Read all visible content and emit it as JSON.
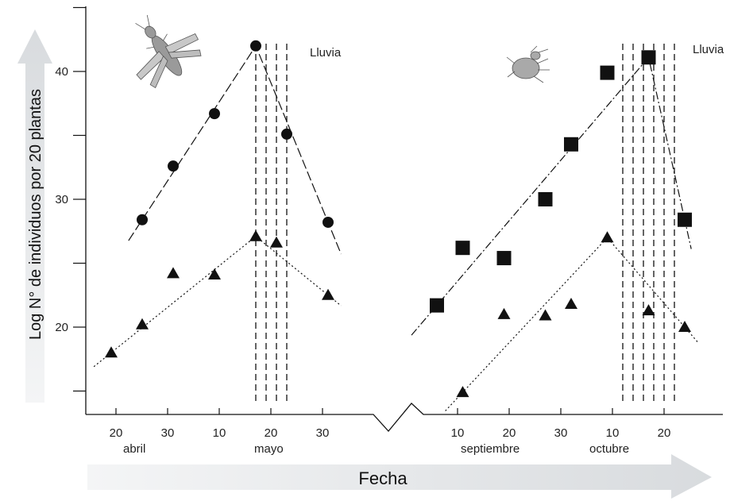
{
  "chart_data": {
    "type": "scatter",
    "xlabel": "Fecha",
    "ylabel": "Log N° de individuos por 20 plantas",
    "ylim": [
      13,
      45
    ],
    "y_ticks": [
      20,
      30,
      40
    ],
    "grid": false,
    "axis_break": true,
    "x_tick_labels_left": [
      "20",
      "30",
      "10",
      "20",
      "30"
    ],
    "x_tick_labels_right": [
      "10",
      "20",
      "30",
      "10",
      "20"
    ],
    "months": [
      "abril",
      "mayo",
      "septiembre",
      "octubre"
    ],
    "rain_label": "Lluvia",
    "panels": [
      {
        "segment": "abril-mayo",
        "series": [
          {
            "marker": "circle",
            "points": [
              [
                25,
                28.4
              ],
              [
                31,
                32.6
              ],
              [
                39,
                36.7
              ],
              [
                47,
                42
              ],
              [
                53,
                35.1
              ],
              [
                61,
                28.2
              ]
            ]
          },
          {
            "marker": "triangle",
            "points": [
              [
                19,
                18
              ],
              [
                25,
                20.2
              ],
              [
                31,
                24.2
              ],
              [
                39,
                24.1
              ],
              [
                47,
                27.1
              ],
              [
                51,
                26.6
              ],
              [
                61,
                22.5
              ]
            ]
          }
        ],
        "rain_days": [
          47,
          49,
          51,
          53
        ]
      },
      {
        "segment": "septiembre-octubre",
        "series": [
          {
            "marker": "square",
            "points": [
              [
                6,
                21.7
              ],
              [
                11,
                26.2
              ],
              [
                19,
                25.4
              ],
              [
                27,
                30
              ],
              [
                32,
                34.3
              ],
              [
                39,
                39.9
              ],
              [
                47,
                41.1
              ],
              [
                54,
                28.4
              ]
            ]
          },
          {
            "marker": "triangle",
            "points": [
              [
                11,
                14.9
              ],
              [
                19,
                21
              ],
              [
                27,
                20.9
              ],
              [
                32,
                21.8
              ],
              [
                39,
                27
              ],
              [
                47,
                21.3
              ],
              [
                54,
                20
              ]
            ]
          }
        ],
        "rain_days": [
          42,
          44,
          46,
          48,
          50,
          52
        ]
      }
    ]
  },
  "colors": {
    "ink": "#111111",
    "arrow": "#e4e6e8"
  },
  "icons": [
    "thrips-insect-icon",
    "mite-icon"
  ]
}
